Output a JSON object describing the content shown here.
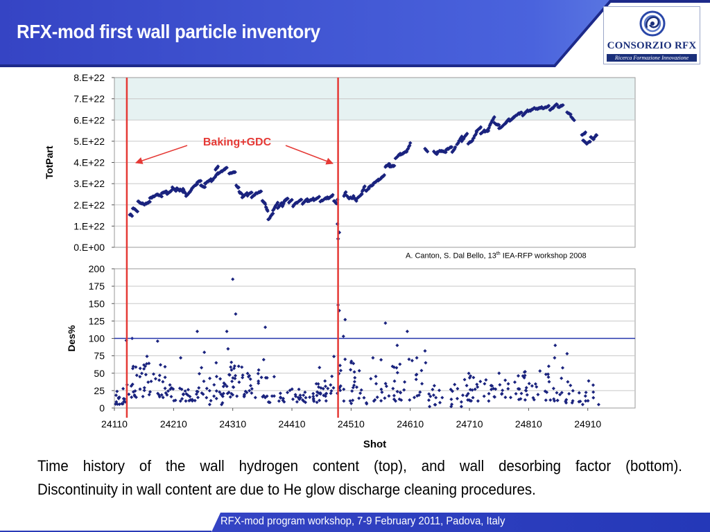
{
  "slide": {
    "title": "RFX-mod first wall particle inventory",
    "footer": "RFX-mod program workshop, 7-9 February 2011, Padova, Italy",
    "caption_line1": "Time history of the wall hydrogen content (top), and wall desorbing factor (bottom).",
    "caption_line2": "Discontinuity in wall content are due to He  glow discharge cleaning procedures.",
    "logo": {
      "name": "CONSORZIO RFX",
      "tagline": "Ricerca Formazione Innovazione",
      "mark": "rfx-swirl-logo"
    },
    "citation": {
      "before": "A. Canton, S. Dal Bello, 13",
      "sup": "th",
      "after": " IEA-RFP workshop 2008"
    },
    "annotation": "Baking+GDC",
    "colors": {
      "header": "#2b3db8",
      "series": "#1a237e",
      "marker_lines": "#e53935",
      "threshold": "#2233aa",
      "band": "#e6f2f2"
    }
  },
  "chart_data": [
    {
      "type": "scatter",
      "ylabel": "TotPart",
      "xlim": [
        24110,
        24990
      ],
      "ylim": [
        0,
        8e+22
      ],
      "yticks": [
        "0.E+00",
        "1.E+22",
        "2.E+22",
        "3.E+22",
        "4.E+22",
        "5.E+22",
        "6.E+22",
        "7.E+22",
        "8.E+22"
      ],
      "shaded_band": [
        6e+22,
        8e+22
      ],
      "vertical_markers": [
        24131,
        24488
      ],
      "segments": [
        [
          24136,
          24140,
          1.55e+22,
          1.5e+22
        ],
        [
          24141,
          24149,
          1.85e+22,
          1.7e+22
        ],
        [
          24150,
          24159,
          2.15e+22,
          2.05e+22
        ],
        [
          24160,
          24170,
          2e+22,
          2.15e+22
        ],
        [
          24170,
          24180,
          2.3e+22,
          2.45e+22
        ],
        [
          24181,
          24190,
          2.5e+22,
          2.4e+22
        ],
        [
          24190,
          24198,
          2.55e+22,
          2.65e+22
        ],
        [
          24199,
          24207,
          2.5e+22,
          2.7e+22
        ],
        [
          24208,
          24214,
          2.85e+22,
          2.65e+22
        ],
        [
          24215,
          24221,
          2.8e+22,
          2.65e+22
        ],
        [
          24221,
          24226,
          2.75e+22,
          2.6e+22
        ],
        [
          24226,
          24230,
          2.75e+22,
          2.55e+22
        ],
        [
          24231,
          24240,
          2.4e+22,
          2.7e+22
        ],
        [
          24241,
          24250,
          2.8e+22,
          3e+22
        ],
        [
          24250,
          24256,
          3.05e+22,
          3.15e+22
        ],
        [
          24256,
          24263,
          2.9e+22,
          2.85e+22
        ],
        [
          24263,
          24273,
          3e+22,
          3.2e+22
        ],
        [
          24274,
          24285,
          3.1e+22,
          3.5e+22
        ],
        [
          24281,
          24285,
          3.65e+22,
          3.8e+22
        ],
        [
          24285,
          24292,
          3.45e+22,
          3.6e+22
        ],
        [
          24292,
          24300,
          3.6e+22,
          3.75e+22
        ],
        [
          24304,
          24314,
          3.5e+22,
          3.55e+22
        ],
        [
          24316,
          24320,
          2.9e+22,
          2.8e+22
        ],
        [
          24321,
          24326,
          2.6e+22,
          2.5e+22
        ],
        [
          24326,
          24334,
          2.35e+22,
          2.55e+22
        ],
        [
          24335,
          24342,
          2.45e+22,
          2.6e+22
        ],
        [
          24342,
          24350,
          2.35e+22,
          2.55e+22
        ],
        [
          24352,
          24358,
          2.55e+22,
          2.65e+22
        ],
        [
          24360,
          24365,
          2.2e+22,
          2.05e+22
        ],
        [
          24366,
          24369,
          1.9e+22,
          1.7e+22
        ],
        [
          24370,
          24378,
          1.3e+22,
          1.6e+22
        ],
        [
          24378,
          24386,
          1.75e+22,
          2.1e+22
        ],
        [
          24386,
          24393,
          1.85e+22,
          2.1e+22
        ],
        [
          24394,
          24398,
          1.95e+22,
          2.2e+22
        ],
        [
          24398,
          24403,
          2.2e+22,
          2.3e+22
        ],
        [
          24405,
          24410,
          2.1e+22,
          2.25e+22
        ],
        [
          24412,
          24416,
          1.95e+22,
          2.1e+22
        ],
        [
          24418,
          24426,
          2.1e+22,
          2.25e+22
        ],
        [
          24428,
          24436,
          2.05e+22,
          2.3e+22
        ],
        [
          24436,
          24446,
          2.15e+22,
          2.3e+22
        ],
        [
          24447,
          24456,
          2.2e+22,
          2.4e+22
        ],
        [
          24458,
          24470,
          2.15e+22,
          2.35e+22
        ],
        [
          24471,
          24479,
          2.3e+22,
          2.45e+22
        ],
        [
          24481,
          24486,
          2.2e+22,
          2.05e+22
        ],
        [
          24498,
          24501,
          2.4e+22,
          2.6e+22
        ],
        [
          24503,
          24507,
          2.4e+22,
          2.3e+22
        ],
        [
          24509,
          24514,
          2.35e+22,
          2.3e+22
        ],
        [
          24514,
          24519,
          2.4e+22,
          2.2e+22
        ],
        [
          24520,
          24528,
          2.3e+22,
          2.5e+22
        ],
        [
          24528,
          24533,
          2.55e+22,
          2.9e+22
        ],
        [
          24535,
          24540,
          2.65e+22,
          2.75e+22
        ],
        [
          24540,
          24547,
          2.85e+22,
          2.95e+22
        ],
        [
          24548,
          24556,
          3e+22,
          3.2e+22
        ],
        [
          24556,
          24566,
          3.15e+22,
          3.4e+22
        ],
        [
          24568,
          24575,
          3.8e+22,
          3.95e+22
        ],
        [
          24575,
          24583,
          3.8e+22,
          3.85e+22
        ],
        [
          24585,
          24593,
          4.2e+22,
          4.4e+22
        ],
        [
          24593,
          24603,
          4.35e+22,
          4.5e+22
        ],
        [
          24604,
          24610,
          4.5e+22,
          4.9e+22
        ],
        [
          24635,
          24639,
          4.65e+22,
          4.5e+22
        ],
        [
          24650,
          24655,
          4.5e+22,
          4.4e+22
        ],
        [
          24655,
          24663,
          4.5e+22,
          4.55e+22
        ],
        [
          24663,
          24670,
          4.55e+22,
          4.5e+22
        ],
        [
          24671,
          24680,
          4.6e+22,
          4.75e+22
        ],
        [
          24681,
          24686,
          4.5e+22,
          4.7e+22
        ],
        [
          24689,
          24697,
          4.85e+22,
          5.2e+22
        ],
        [
          24697,
          24706,
          5e+22,
          5.35e+22
        ],
        [
          24708,
          24714,
          4.9e+22,
          5e+22
        ],
        [
          24714,
          24722,
          5e+22,
          5.4e+22
        ],
        [
          24722,
          24729,
          5.5e+22,
          5.65e+22
        ],
        [
          24729,
          24735,
          5.35e+22,
          5.5e+22
        ],
        [
          24735,
          24742,
          5.45e+22,
          5.5e+22
        ],
        [
          24742,
          24752,
          5.6e+22,
          6.15e+22
        ],
        [
          24752,
          24760,
          5.85e+22,
          5.75e+22
        ],
        [
          24760,
          24766,
          5.6e+22,
          5.7e+22
        ],
        [
          24768,
          24777,
          5.75e+22,
          6.05e+22
        ],
        [
          24778,
          24788,
          5.95e+22,
          6.2e+22
        ],
        [
          24790,
          24798,
          6.25e+22,
          6.35e+22
        ],
        [
          24800,
          24808,
          6.2e+22,
          6.45e+22
        ],
        [
          24810,
          24820,
          6.4e+22,
          6.55e+22
        ],
        [
          24822,
          24832,
          6.5e+22,
          6.6e+22
        ],
        [
          24834,
          24844,
          6.55e+22,
          6.65e+22
        ],
        [
          24846,
          24858,
          6.45e+22,
          6.75e+22
        ],
        [
          24860,
          24868,
          6.6e+22,
          6.7e+22
        ],
        [
          24875,
          24881,
          6.35e+22,
          6.25e+22
        ],
        [
          24882,
          24887,
          6.15e+22,
          6e+22
        ],
        [
          24900,
          24906,
          5.3e+22,
          5.4e+22
        ],
        [
          24902,
          24908,
          5.05e+22,
          4.9e+22
        ],
        [
          24908,
          24914,
          4.9e+22,
          5e+22
        ],
        [
          24915,
          24920,
          5.2e+22,
          5.1e+22
        ],
        [
          24920,
          24925,
          5.15e+22,
          5.3e+22
        ]
      ],
      "points": [
        [
          24488,
          4e+21
        ],
        [
          24490,
          7e+21
        ],
        [
          24487,
          1.1e+22
        ],
        [
          24487,
          2.25e+22
        ]
      ]
    },
    {
      "type": "scatter",
      "xlabel": "Shot",
      "ylabel": "Des%",
      "xlim": [
        24110,
        24990
      ],
      "ylim": [
        0,
        200
      ],
      "yticks": [
        0,
        25,
        50,
        75,
        100,
        125,
        150,
        175,
        200
      ],
      "xticks": [
        24110,
        24210,
        24310,
        24410,
        24510,
        24610,
        24710,
        24810,
        24910
      ],
      "threshold": 100,
      "points": [
        [
          24310,
          185
        ],
        [
          24315,
          135
        ],
        [
          24488,
          148
        ],
        [
          24490,
          140
        ],
        [
          24500,
          127
        ],
        [
          24568,
          122
        ],
        [
          24605,
          110
        ],
        [
          24365,
          116
        ],
        [
          24250,
          110
        ],
        [
          24300,
          110
        ],
        [
          24140,
          100
        ],
        [
          24130,
          97
        ],
        [
          24497,
          103
        ],
        [
          24183,
          96
        ],
        [
          24588,
          90
        ],
        [
          24855,
          90
        ],
        [
          24875,
          78
        ],
        [
          24635,
          82
        ],
        [
          24380,
          45
        ],
        [
          24222,
          72
        ],
        [
          24262,
          80
        ],
        [
          24282,
          65
        ],
        [
          24302,
          85
        ],
        [
          24320,
          60
        ],
        [
          24481,
          74
        ],
        [
          24500,
          70
        ],
        [
          24510,
          65
        ],
        [
          24547,
          72
        ],
        [
          24608,
          70
        ],
        [
          24621,
          72
        ],
        [
          24636,
          65
        ],
        [
          24844,
          60
        ],
        [
          24854,
          72
        ]
      ],
      "clusters": [
        [
          24112,
          24130,
          5,
          30,
          16
        ],
        [
          24130,
          24200,
          15,
          75,
          48
        ],
        [
          24200,
          24250,
          10,
          35,
          28
        ],
        [
          24250,
          24300,
          5,
          60,
          30
        ],
        [
          24300,
          24370,
          15,
          70,
          50
        ],
        [
          24370,
          24470,
          8,
          28,
          48
        ],
        [
          24450,
          24487,
          20,
          60,
          16
        ],
        [
          24488,
          24540,
          5,
          70,
          28
        ],
        [
          24540,
          24620,
          10,
          70,
          36
        ],
        [
          24620,
          24630,
          15,
          55,
          6
        ],
        [
          24640,
          24700,
          2,
          35,
          24
        ],
        [
          24700,
          24800,
          10,
          50,
          50
        ],
        [
          24800,
          24870,
          10,
          60,
          36
        ],
        [
          24870,
          24930,
          5,
          40,
          22
        ]
      ]
    }
  ]
}
